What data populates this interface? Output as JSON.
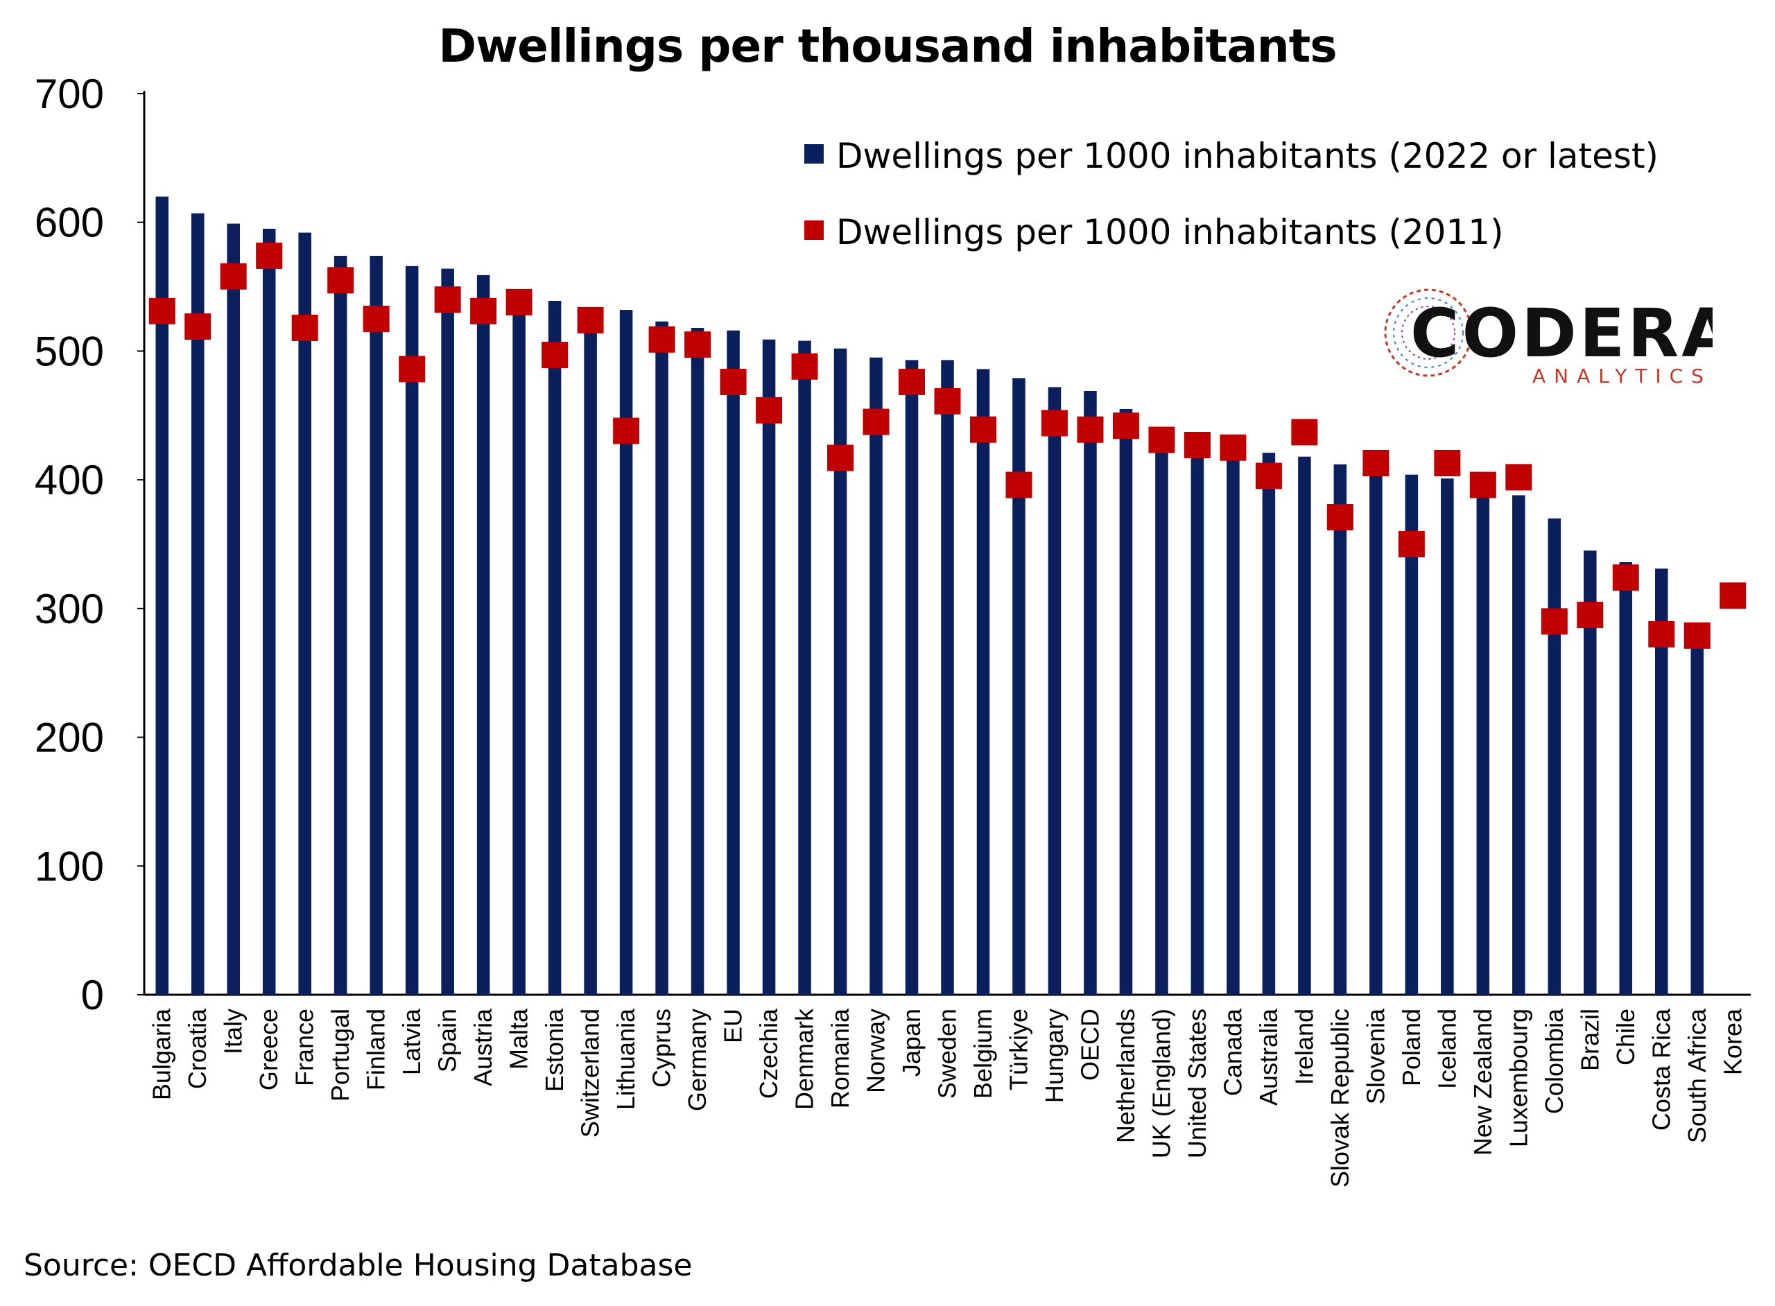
{
  "chart_data": {
    "type": "bar",
    "title": "Dwellings per thousand inhabitants",
    "xlabel": "",
    "ylabel": "",
    "ylim": [
      0,
      700
    ],
    "yticks": [
      0,
      100,
      200,
      300,
      400,
      500,
      600,
      700
    ],
    "grid": false,
    "legend_position": "top-right",
    "categories": [
      "Bulgaria",
      "Croatia",
      "Italy",
      "Greece",
      "France",
      "Portugal",
      "Finland",
      "Latvia",
      "Spain",
      "Austria",
      "Malta",
      "Estonia",
      "Switzerland",
      "Lithuania",
      "Cyprus",
      "Germany",
      "EU",
      "Czechia",
      "Denmark",
      "Romania",
      "Norway",
      "Japan",
      "Sweden",
      "Belgium",
      "Türkiye",
      "Hungary",
      "OECD",
      "Netherlands",
      "UK (England)",
      "United States",
      "Canada",
      "Australia",
      "Ireland",
      "Slovak Republic",
      "Slovenia",
      "Poland",
      "Iceland",
      "New Zealand",
      "Luxembourg",
      "Colombia",
      "Brazil",
      "Chile",
      "Costa Rica",
      "South Africa",
      "Korea"
    ],
    "series": [
      {
        "name": "Dwellings per 1000 inhabitants (2022 or latest)",
        "kind": "bar",
        "color": "#0b1f5c",
        "values": [
          620,
          607,
          599,
          595,
          592,
          574,
          574,
          566,
          564,
          559,
          541,
          539,
          527,
          532,
          523,
          518,
          516,
          509,
          508,
          502,
          495,
          493,
          493,
          486,
          479,
          472,
          469,
          455,
          434,
          430,
          428,
          421,
          418,
          412,
          409,
          404,
          401,
          392,
          388,
          370,
          345,
          336,
          331,
          281,
          null
        ]
      },
      {
        "name": "Dwellings per 1000 inhabitants (2011)",
        "kind": "marker",
        "color": "#c00000",
        "values": [
          531,
          519,
          558,
          574,
          518,
          555,
          525,
          486,
          540,
          531,
          538,
          497,
          524,
          438,
          509,
          505,
          476,
          454,
          488,
          417,
          445,
          476,
          461,
          439,
          396,
          444,
          439,
          442,
          431,
          427,
          425,
          403,
          437,
          371,
          413,
          350,
          413,
          396,
          402,
          290,
          295,
          324,
          280,
          279,
          310
        ]
      }
    ]
  },
  "source": "Source: OECD Affordable Housing Database",
  "logo": {
    "word": "CODERA",
    "sub": "ANALYTICS"
  }
}
